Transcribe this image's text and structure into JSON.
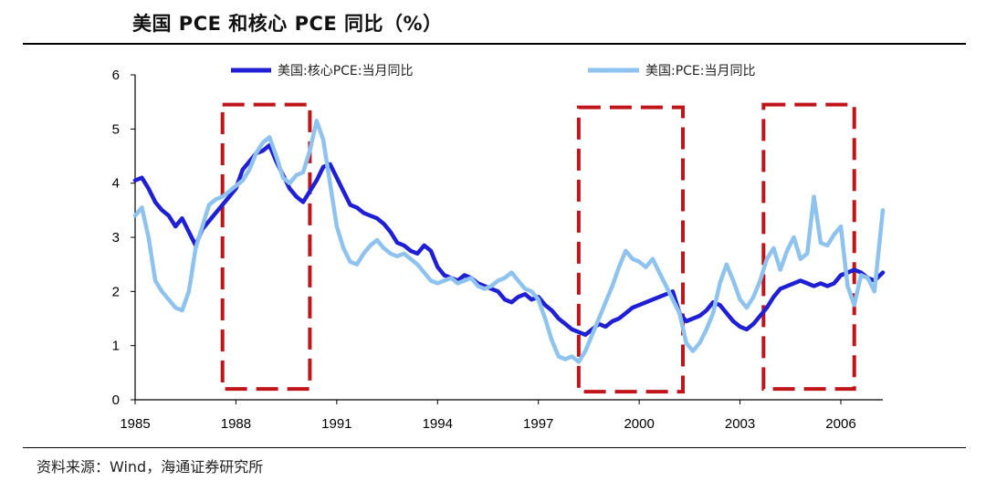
{
  "title": "美国 PCE 和核心 PCE 同比（%）",
  "source": "资料来源：Wind，海通证券研究所",
  "chart_data": {
    "type": "line",
    "xlim": [
      1985,
      2007.25
    ],
    "ylim": [
      0,
      6
    ],
    "y_ticks": [
      0,
      1,
      2,
      3,
      4,
      5,
      6
    ],
    "x_ticks": [
      1985,
      1988,
      1991,
      1994,
      1997,
      2000,
      2003,
      2006
    ],
    "legend_placement": "top",
    "series": [
      {
        "name": "美国:核心PCE:当月同比",
        "color": "#1f1fd6",
        "points": [
          [
            1985.0,
            4.05
          ],
          [
            1985.2,
            4.1
          ],
          [
            1985.4,
            3.9
          ],
          [
            1985.6,
            3.65
          ],
          [
            1985.8,
            3.5
          ],
          [
            1986.0,
            3.4
          ],
          [
            1986.2,
            3.2
          ],
          [
            1986.4,
            3.35
          ],
          [
            1986.6,
            3.1
          ],
          [
            1986.8,
            2.85
          ],
          [
            1987.0,
            3.15
          ],
          [
            1987.2,
            3.3
          ],
          [
            1987.4,
            3.45
          ],
          [
            1987.6,
            3.6
          ],
          [
            1987.8,
            3.75
          ],
          [
            1988.0,
            3.9
          ],
          [
            1988.2,
            4.25
          ],
          [
            1988.4,
            4.4
          ],
          [
            1988.6,
            4.55
          ],
          [
            1988.8,
            4.6
          ],
          [
            1989.0,
            4.7
          ],
          [
            1989.2,
            4.4
          ],
          [
            1989.4,
            4.15
          ],
          [
            1989.6,
            3.9
          ],
          [
            1989.8,
            3.75
          ],
          [
            1990.0,
            3.65
          ],
          [
            1990.2,
            3.85
          ],
          [
            1990.4,
            4.05
          ],
          [
            1990.6,
            4.3
          ],
          [
            1990.8,
            4.35
          ],
          [
            1991.0,
            4.1
          ],
          [
            1991.2,
            3.85
          ],
          [
            1991.4,
            3.6
          ],
          [
            1991.6,
            3.55
          ],
          [
            1991.8,
            3.45
          ],
          [
            1992.0,
            3.4
          ],
          [
            1992.2,
            3.35
          ],
          [
            1992.4,
            3.25
          ],
          [
            1992.6,
            3.1
          ],
          [
            1992.8,
            2.9
          ],
          [
            1993.0,
            2.85
          ],
          [
            1993.2,
            2.75
          ],
          [
            1993.4,
            2.7
          ],
          [
            1993.6,
            2.85
          ],
          [
            1993.8,
            2.75
          ],
          [
            1994.0,
            2.45
          ],
          [
            1994.2,
            2.3
          ],
          [
            1994.4,
            2.25
          ],
          [
            1994.6,
            2.2
          ],
          [
            1994.8,
            2.3
          ],
          [
            1995.0,
            2.25
          ],
          [
            1995.2,
            2.15
          ],
          [
            1995.4,
            2.1
          ],
          [
            1995.6,
            2.05
          ],
          [
            1995.8,
            2.0
          ],
          [
            1996.0,
            1.85
          ],
          [
            1996.2,
            1.8
          ],
          [
            1996.4,
            1.9
          ],
          [
            1996.6,
            1.95
          ],
          [
            1996.8,
            1.85
          ],
          [
            1997.0,
            1.9
          ],
          [
            1997.2,
            1.75
          ],
          [
            1997.4,
            1.65
          ],
          [
            1997.6,
            1.5
          ],
          [
            1997.8,
            1.4
          ],
          [
            1998.0,
            1.3
          ],
          [
            1998.2,
            1.25
          ],
          [
            1998.4,
            1.2
          ],
          [
            1998.6,
            1.3
          ],
          [
            1998.8,
            1.4
          ],
          [
            1999.0,
            1.35
          ],
          [
            1999.2,
            1.45
          ],
          [
            1999.4,
            1.5
          ],
          [
            1999.6,
            1.6
          ],
          [
            1999.8,
            1.7
          ],
          [
            2000.0,
            1.75
          ],
          [
            2000.2,
            1.8
          ],
          [
            2000.4,
            1.85
          ],
          [
            2000.6,
            1.9
          ],
          [
            2000.8,
            1.95
          ],
          [
            2001.0,
            2.0
          ],
          [
            2001.2,
            1.6
          ],
          [
            2001.4,
            1.45
          ],
          [
            2001.6,
            1.5
          ],
          [
            2001.8,
            1.55
          ],
          [
            2002.0,
            1.65
          ],
          [
            2002.2,
            1.8
          ],
          [
            2002.4,
            1.75
          ],
          [
            2002.6,
            1.6
          ],
          [
            2002.8,
            1.45
          ],
          [
            2003.0,
            1.35
          ],
          [
            2003.2,
            1.3
          ],
          [
            2003.4,
            1.4
          ],
          [
            2003.6,
            1.55
          ],
          [
            2003.8,
            1.7
          ],
          [
            2004.0,
            1.9
          ],
          [
            2004.2,
            2.05
          ],
          [
            2004.4,
            2.1
          ],
          [
            2004.6,
            2.15
          ],
          [
            2004.8,
            2.2
          ],
          [
            2005.0,
            2.15
          ],
          [
            2005.2,
            2.1
          ],
          [
            2005.4,
            2.15
          ],
          [
            2005.6,
            2.1
          ],
          [
            2005.8,
            2.15
          ],
          [
            2006.0,
            2.3
          ],
          [
            2006.2,
            2.35
          ],
          [
            2006.4,
            2.4
          ],
          [
            2006.6,
            2.35
          ],
          [
            2006.8,
            2.25
          ],
          [
            2007.0,
            2.2
          ],
          [
            2007.25,
            2.35
          ]
        ]
      },
      {
        "name": "美国:PCE:当月同比",
        "color": "#8ec3ef",
        "points": [
          [
            1985.0,
            3.4
          ],
          [
            1985.2,
            3.55
          ],
          [
            1985.4,
            3.0
          ],
          [
            1985.6,
            2.2
          ],
          [
            1985.8,
            2.0
          ],
          [
            1986.0,
            1.85
          ],
          [
            1986.2,
            1.7
          ],
          [
            1986.4,
            1.65
          ],
          [
            1986.6,
            2.0
          ],
          [
            1986.8,
            2.8
          ],
          [
            1987.0,
            3.2
          ],
          [
            1987.2,
            3.6
          ],
          [
            1987.4,
            3.7
          ],
          [
            1987.6,
            3.75
          ],
          [
            1987.8,
            3.85
          ],
          [
            1988.0,
            3.95
          ],
          [
            1988.2,
            4.05
          ],
          [
            1988.4,
            4.25
          ],
          [
            1988.6,
            4.55
          ],
          [
            1988.8,
            4.75
          ],
          [
            1989.0,
            4.85
          ],
          [
            1989.2,
            4.5
          ],
          [
            1989.4,
            4.1
          ],
          [
            1989.6,
            4.0
          ],
          [
            1989.8,
            4.15
          ],
          [
            1990.0,
            4.2
          ],
          [
            1990.2,
            4.6
          ],
          [
            1990.4,
            5.15
          ],
          [
            1990.6,
            4.8
          ],
          [
            1990.8,
            4.0
          ],
          [
            1991.0,
            3.2
          ],
          [
            1991.2,
            2.8
          ],
          [
            1991.4,
            2.55
          ],
          [
            1991.6,
            2.5
          ],
          [
            1991.8,
            2.7
          ],
          [
            1992.0,
            2.85
          ],
          [
            1992.2,
            2.95
          ],
          [
            1992.4,
            2.8
          ],
          [
            1992.6,
            2.7
          ],
          [
            1992.8,
            2.65
          ],
          [
            1993.0,
            2.7
          ],
          [
            1993.2,
            2.6
          ],
          [
            1993.4,
            2.5
          ],
          [
            1993.6,
            2.35
          ],
          [
            1993.8,
            2.2
          ],
          [
            1994.0,
            2.15
          ],
          [
            1994.2,
            2.2
          ],
          [
            1994.4,
            2.25
          ],
          [
            1994.6,
            2.15
          ],
          [
            1994.8,
            2.2
          ],
          [
            1995.0,
            2.25
          ],
          [
            1995.2,
            2.1
          ],
          [
            1995.4,
            2.05
          ],
          [
            1995.6,
            2.1
          ],
          [
            1995.8,
            2.2
          ],
          [
            1996.0,
            2.25
          ],
          [
            1996.2,
            2.35
          ],
          [
            1996.4,
            2.2
          ],
          [
            1996.6,
            2.05
          ],
          [
            1996.8,
            2.0
          ],
          [
            1997.0,
            1.85
          ],
          [
            1997.2,
            1.5
          ],
          [
            1997.4,
            1.1
          ],
          [
            1997.6,
            0.8
          ],
          [
            1997.8,
            0.75
          ],
          [
            1998.0,
            0.8
          ],
          [
            1998.2,
            0.7
          ],
          [
            1998.4,
            0.9
          ],
          [
            1998.6,
            1.2
          ],
          [
            1998.8,
            1.5
          ],
          [
            1999.0,
            1.8
          ],
          [
            1999.2,
            2.1
          ],
          [
            1999.4,
            2.45
          ],
          [
            1999.6,
            2.75
          ],
          [
            1999.8,
            2.6
          ],
          [
            2000.0,
            2.55
          ],
          [
            2000.2,
            2.45
          ],
          [
            2000.4,
            2.6
          ],
          [
            2000.6,
            2.35
          ],
          [
            2000.8,
            2.1
          ],
          [
            2001.0,
            1.85
          ],
          [
            2001.2,
            1.6
          ],
          [
            2001.4,
            1.05
          ],
          [
            2001.6,
            0.9
          ],
          [
            2001.8,
            1.05
          ],
          [
            2002.0,
            1.3
          ],
          [
            2002.2,
            1.6
          ],
          [
            2002.4,
            2.15
          ],
          [
            2002.6,
            2.5
          ],
          [
            2002.8,
            2.2
          ],
          [
            2003.0,
            1.85
          ],
          [
            2003.2,
            1.7
          ],
          [
            2003.4,
            1.9
          ],
          [
            2003.6,
            2.2
          ],
          [
            2003.8,
            2.6
          ],
          [
            2004.0,
            2.8
          ],
          [
            2004.2,
            2.4
          ],
          [
            2004.4,
            2.75
          ],
          [
            2004.6,
            3.0
          ],
          [
            2004.8,
            2.6
          ],
          [
            2005.0,
            2.7
          ],
          [
            2005.2,
            3.75
          ],
          [
            2005.4,
            2.9
          ],
          [
            2005.6,
            2.85
          ],
          [
            2005.8,
            3.05
          ],
          [
            2006.0,
            3.2
          ],
          [
            2006.2,
            2.1
          ],
          [
            2006.4,
            1.75
          ],
          [
            2006.6,
            2.3
          ],
          [
            2006.8,
            2.25
          ],
          [
            2007.0,
            2.0
          ],
          [
            2007.25,
            3.5
          ]
        ]
      }
    ],
    "highlight_boxes": [
      {
        "x_from": 1987.6,
        "x_to": 1990.2,
        "y_from": 0.2,
        "y_to": 5.45,
        "color": "#c0141b"
      },
      {
        "x_from": 1998.2,
        "x_to": 2001.3,
        "y_from": 0.15,
        "y_to": 5.4,
        "color": "#c0141b"
      },
      {
        "x_from": 2003.7,
        "x_to": 2006.4,
        "y_from": 0.2,
        "y_to": 5.45,
        "color": "#c0141b"
      }
    ]
  }
}
